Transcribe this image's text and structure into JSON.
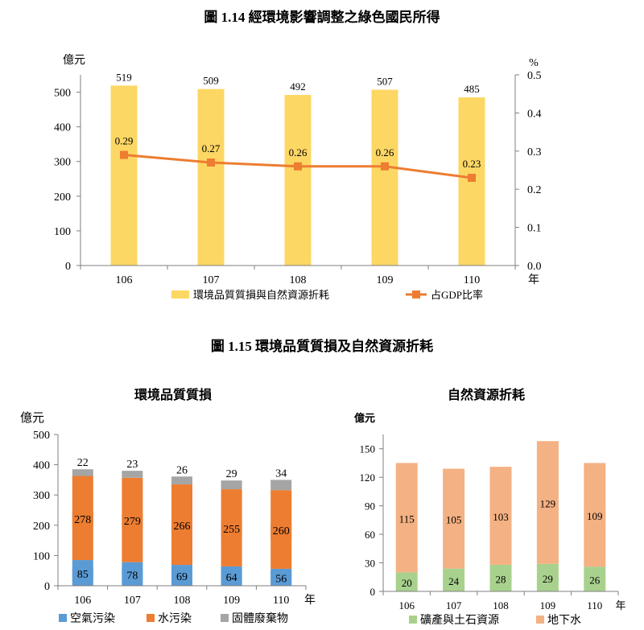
{
  "figure_114_title": "圖 1.14 經環境影響調整之綠色國民所得",
  "figure_115_title": "圖 1.15 環境品質質損及自然資源折耗",
  "chart_data": [
    {
      "id": "fig114",
      "type": "bar+line",
      "categories": [
        "106",
        "107",
        "108",
        "109",
        "110"
      ],
      "x_unit": "年",
      "left_axis_unit": "億元",
      "right_axis_unit": "%",
      "left_ylim": [
        0,
        550
      ],
      "left_ticks": [
        "0",
        "100",
        "200",
        "300",
        "400",
        "500"
      ],
      "right_ylim": [
        0,
        0.5
      ],
      "right_ticks": [
        "0.0",
        "0.1",
        "0.2",
        "0.3",
        "0.4",
        "0.5"
      ],
      "series": [
        {
          "name": "環境品質質損與自然資源折耗",
          "kind": "bar",
          "axis": "left",
          "color": "#FDD764",
          "values": [
            519,
            509,
            492,
            507,
            485
          ],
          "labels": [
            "519",
            "509",
            "492",
            "507",
            "485"
          ]
        },
        {
          "name": "占GDP比率",
          "kind": "line",
          "axis": "right",
          "color": "#ED7D31",
          "values": [
            0.29,
            0.27,
            0.26,
            0.26,
            0.23
          ],
          "labels": [
            "0.29",
            "0.27",
            "0.26",
            "0.26",
            "0.23"
          ]
        }
      ],
      "grid": false,
      "legend_position": "bottom"
    },
    {
      "id": "fig115a",
      "type": "stacked-bar",
      "title": "環境品質質損",
      "categories": [
        "106",
        "107",
        "108",
        "109",
        "110"
      ],
      "x_unit": "年",
      "y_unit": "億元",
      "ylim": [
        0,
        500
      ],
      "y_ticks": [
        "0",
        "100",
        "200",
        "300",
        "400",
        "500"
      ],
      "series": [
        {
          "name": "空氣污染",
          "color": "#5B9BD5",
          "values": [
            85,
            78,
            69,
            64,
            56
          ],
          "labels": [
            "85",
            "78",
            "69",
            "64",
            "56"
          ]
        },
        {
          "name": "水污染",
          "color": "#ED7D31",
          "values": [
            278,
            279,
            266,
            255,
            260
          ],
          "labels": [
            "278",
            "279",
            "266",
            "255",
            "260"
          ]
        },
        {
          "name": "固體廢棄物",
          "color": "#A5A5A5",
          "values": [
            22,
            23,
            26,
            29,
            34
          ],
          "labels": [
            "22",
            "23",
            "26",
            "29",
            "34"
          ]
        }
      ],
      "grid": false,
      "legend_position": "bottom"
    },
    {
      "id": "fig115b",
      "type": "stacked-bar",
      "title": "自然資源折耗",
      "categories": [
        "106",
        "107",
        "108",
        "109",
        "110"
      ],
      "x_unit": "年",
      "y_unit": "億元",
      "ylim": [
        0,
        165
      ],
      "y_ticks": [
        "0",
        "30",
        "60",
        "90",
        "120",
        "150"
      ],
      "series": [
        {
          "name": "礦產與土石資源",
          "color": "#A9D18E",
          "values": [
            20,
            24,
            28,
            29,
            26
          ],
          "labels": [
            "20",
            "24",
            "28",
            "29",
            "26"
          ]
        },
        {
          "name": "地下水",
          "color": "#F4B183",
          "values": [
            115,
            105,
            103,
            129,
            109
          ],
          "labels": [
            "115",
            "105",
            "103",
            "129",
            "109"
          ]
        }
      ],
      "grid": false,
      "legend_position": "bottom"
    }
  ]
}
